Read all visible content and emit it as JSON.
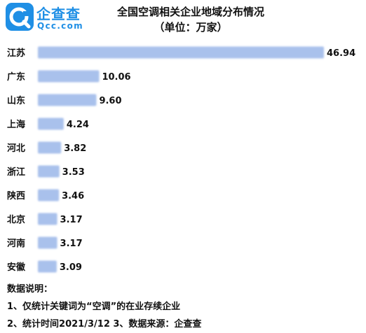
{
  "brand": {
    "name": "企查查",
    "domain": "Qcc.com",
    "color": "#1f8fe5"
  },
  "chart_data": {
    "type": "bar",
    "orientation": "horizontal",
    "title": "全国空调相关企业地域分布情况",
    "subtitle": "（单位：万家）",
    "categories": [
      "江苏",
      "广东",
      "山东",
      "上海",
      "河北",
      "浙江",
      "陕西",
      "北京",
      "河南",
      "安徽"
    ],
    "values": [
      46.94,
      10.06,
      9.6,
      4.24,
      3.82,
      3.53,
      3.46,
      3.17,
      3.17,
      3.09
    ],
    "value_labels": [
      "46.94",
      "10.06",
      "9.60",
      "4.24",
      "3.82",
      "3.53",
      "3.46",
      "3.17",
      "3.17",
      "3.09"
    ],
    "xlim": [
      0,
      46.94
    ],
    "bar_color": "#a9c1ec",
    "grid": false,
    "legend": "none"
  },
  "notes": {
    "heading": "数据说明：",
    "line1": "1、仅统计关键词为“空调”的在业存续企业",
    "line2": "2、统计时间2021/3/12  3、数据来源：企查查"
  }
}
